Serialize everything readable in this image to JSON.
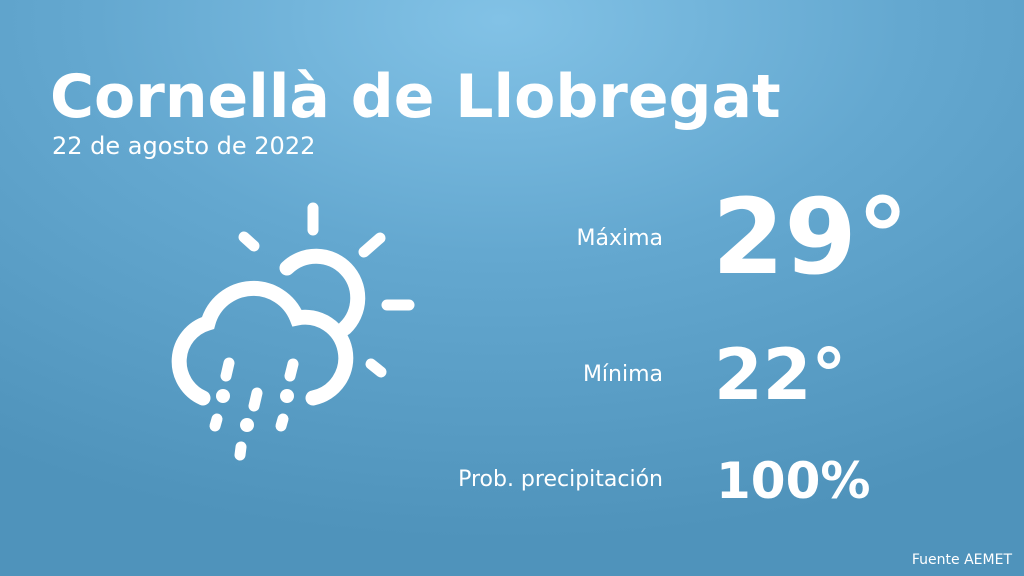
{
  "location": "Cornellà de Llobregat",
  "date": "22 de agosto de 2022",
  "weather_icon": "cloud-sun-rain-icon",
  "max": {
    "label": "Máxima",
    "value": "29°"
  },
  "min": {
    "label": "Mínima",
    "value": "22°"
  },
  "precip": {
    "label": "Prob. precipitación",
    "value": "100%"
  },
  "source": "Fuente AEMET",
  "colors": {
    "background_top": "#82c2e6",
    "background_bottom": "#4f93bb",
    "text": "#ffffff"
  }
}
